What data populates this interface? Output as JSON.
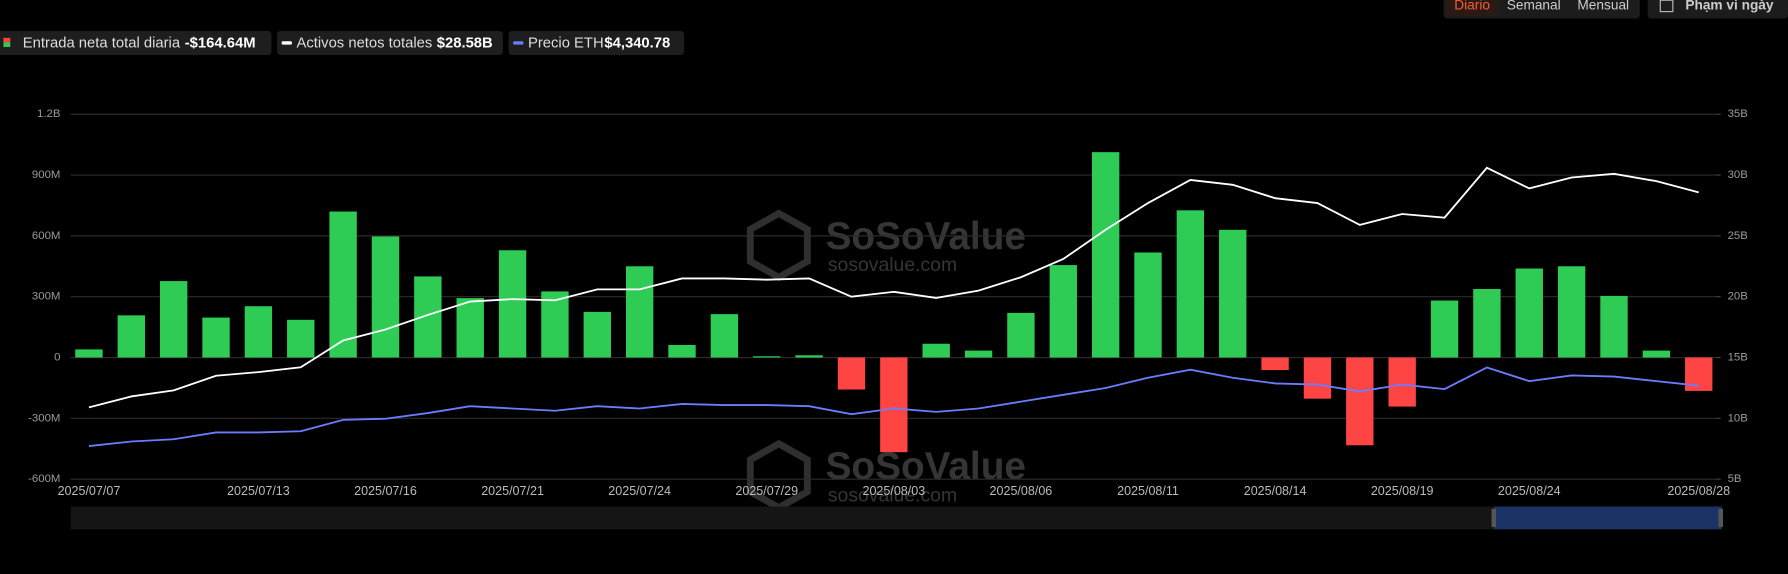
{
  "header": {
    "tabs": [
      "Diario",
      "Semanal",
      "Mensual"
    ],
    "date_range": "Phạm vi ngày"
  },
  "watermark": {
    "brand": "SoSoValue",
    "site": "sosovalue.com"
  },
  "chart_data": {
    "type": "bar",
    "categories": [
      "2025/07/07",
      null,
      null,
      null,
      "2025/07/13",
      null,
      null,
      "2025/07/16",
      null,
      null,
      "2025/07/21",
      null,
      null,
      "2025/07/24",
      null,
      null,
      "2025/07/29",
      null,
      null,
      "2025/08/03",
      null,
      null,
      "2025/08/06",
      null,
      null,
      "2025/08/11",
      null,
      null,
      "2025/08/14",
      null,
      null,
      "2025/08/19",
      null,
      null,
      "2025/08/24",
      null,
      null,
      null,
      "2025/08/28"
    ],
    "series": [
      {
        "name": "Entrada neta total diaria",
        "type": "bar",
        "axis": "y",
        "color": "#2ecc55",
        "negative_color": "#ff4444",
        "values": [
          40,
          208,
          377,
          197,
          253,
          186,
          720,
          597,
          400,
          293,
          529,
          326,
          225,
          450,
          62,
          214,
          6,
          11,
          -158,
          -467,
          68,
          34,
          220,
          456,
          1013,
          518,
          726,
          630,
          -62,
          -203,
          -433,
          -242,
          281,
          338,
          439,
          450,
          304,
          34,
          -164.64
        ]
      },
      {
        "name": "Activos netos totales",
        "type": "line",
        "axis": "y2",
        "color": "#ffffff",
        "values": [
          10.9,
          11.8,
          12.3,
          13.5,
          13.8,
          14.2,
          16.4,
          17.3,
          18.5,
          19.6,
          19.8,
          19.7,
          20.6,
          20.6,
          21.5,
          21.5,
          21.4,
          21.5,
          20.0,
          20.4,
          19.9,
          20.5,
          21.6,
          23.1,
          25.5,
          27.7,
          29.6,
          29.2,
          28.1,
          27.7,
          25.9,
          26.8,
          26.5,
          30.6,
          28.9,
          29.8,
          30.1,
          29.5,
          28.58
        ]
      },
      {
        "name": "Precio ETH",
        "type": "line",
        "axis": "y3",
        "color": "#6a7dff",
        "values": [
          2570,
          2703,
          2770,
          2970,
          2970,
          3004,
          3338,
          3371,
          3538,
          3739,
          3672,
          3605,
          3739,
          3672,
          3806,
          3772,
          3772,
          3739,
          3505,
          3672,
          3572,
          3672,
          3872,
          4073,
          4273,
          4574,
          4808,
          4574,
          4407,
          4373,
          4173,
          4373,
          4240,
          4874,
          4474,
          4641,
          4607,
          4474,
          4340.78
        ]
      }
    ],
    "legend_values": [
      "-$164.64M",
      "$28.58B",
      "$4,340.78"
    ],
    "ylim": [
      -600,
      1200
    ],
    "yticks": [
      {
        "value": -600,
        "label": "-600M"
      },
      {
        "value": -300,
        "label": "-300M"
      },
      0,
      {
        "value": 300,
        "label": "300M"
      },
      {
        "value": 600,
        "label": "600M"
      },
      {
        "value": 900,
        "label": "900M"
      },
      {
        "value": 1200,
        "label": "1.2B"
      }
    ],
    "y2lim": [
      5,
      35
    ],
    "y2ticks": [
      {
        "value": 5,
        "label": "5B"
      },
      {
        "value": 10,
        "label": "10B"
      },
      {
        "value": 15,
        "label": "15B"
      },
      {
        "value": 20,
        "label": "20B"
      },
      {
        "value": 25,
        "label": "25B"
      },
      {
        "value": 30,
        "label": "30B"
      },
      {
        "value": 35,
        "label": "35B"
      }
    ],
    "y3lim": [
      1600,
      12300
    ],
    "grid": true
  }
}
